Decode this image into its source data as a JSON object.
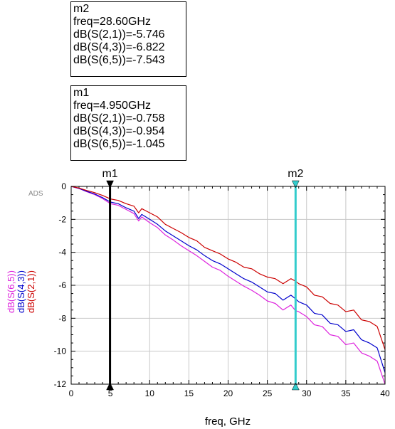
{
  "markers": [
    {
      "name": "m2",
      "freq_text": "freq=28.60GHz",
      "lines": [
        "dB(S(2,1))=-5.746",
        "dB(S(4,3))=-6.822",
        "dB(S(6,5))=-7.543"
      ]
    },
    {
      "name": "m1",
      "freq_text": "freq=4.950GHz",
      "lines": [
        "dB(S(2,1))=-0.758",
        "dB(S(4,3))=-0.954",
        "dB(S(6,5))=-1.045"
      ]
    }
  ],
  "chart_data": {
    "type": "line",
    "watermark": "ADS",
    "xlabel": "freq, GHz",
    "xlim": [
      0,
      40
    ],
    "ylim": [
      -12,
      0
    ],
    "xticks": [
      0,
      5,
      10,
      15,
      20,
      25,
      30,
      35,
      40
    ],
    "yticks": [
      0,
      -2,
      -4,
      -6,
      -8,
      -10,
      -12
    ],
    "grid": true,
    "legend": "left-vertical",
    "series": [
      {
        "name": "dB(S(2,1))",
        "color": "#cc0000",
        "x": [
          0,
          1,
          2,
          3,
          4,
          5,
          6,
          7,
          8,
          8.6,
          9,
          10,
          11,
          12,
          13,
          14,
          15,
          16,
          17,
          18,
          19,
          20,
          21,
          22,
          23,
          24,
          25,
          26,
          27,
          28,
          28.6,
          29,
          30,
          31,
          32,
          33,
          34,
          35,
          36,
          37,
          38,
          39,
          40
        ],
        "y": [
          0,
          -0.1,
          -0.25,
          -0.38,
          -0.55,
          -0.76,
          -0.85,
          -1.05,
          -1.2,
          -1.6,
          -1.35,
          -1.6,
          -1.85,
          -2.3,
          -2.55,
          -2.8,
          -3.1,
          -3.3,
          -3.7,
          -3.9,
          -4.1,
          -4.4,
          -4.6,
          -4.9,
          -5.0,
          -5.3,
          -5.5,
          -5.6,
          -5.9,
          -5.6,
          -5.75,
          -5.9,
          -6.1,
          -6.6,
          -6.7,
          -7.1,
          -7.2,
          -7.6,
          -7.5,
          -8.1,
          -8.2,
          -8.5,
          -9.9
        ]
      },
      {
        "name": "dB(S(4,3))",
        "color": "#0000cc",
        "x": [
          0,
          1,
          2,
          3,
          4,
          5,
          6,
          7,
          8,
          8.6,
          9,
          10,
          11,
          12,
          13,
          14,
          15,
          16,
          17,
          18,
          19,
          20,
          21,
          22,
          23,
          24,
          25,
          26,
          27,
          28,
          28.6,
          29,
          30,
          31,
          32,
          33,
          34,
          35,
          36,
          37,
          38,
          39,
          40
        ],
        "y": [
          0,
          -0.12,
          -0.3,
          -0.46,
          -0.68,
          -0.95,
          -1.05,
          -1.3,
          -1.5,
          -1.95,
          -1.7,
          -2.0,
          -2.3,
          -2.7,
          -3.0,
          -3.3,
          -3.6,
          -3.85,
          -4.2,
          -4.5,
          -4.7,
          -5.0,
          -5.3,
          -5.6,
          -5.8,
          -6.1,
          -6.4,
          -6.5,
          -6.9,
          -6.6,
          -6.82,
          -7.0,
          -7.2,
          -7.7,
          -7.8,
          -8.3,
          -8.4,
          -8.8,
          -8.7,
          -9.3,
          -9.5,
          -9.8,
          -11.3
        ]
      },
      {
        "name": "dB(S(6,5))",
        "color": "#dd22dd",
        "x": [
          0,
          1,
          2,
          3,
          4,
          5,
          6,
          7,
          8,
          8.6,
          9,
          10,
          11,
          12,
          13,
          14,
          15,
          16,
          17,
          18,
          19,
          20,
          21,
          22,
          23,
          24,
          25,
          26,
          27,
          28,
          28.6,
          29,
          30,
          31,
          32,
          33,
          34,
          35,
          36,
          37,
          38,
          39,
          40
        ],
        "y": [
          0,
          -0.13,
          -0.33,
          -0.5,
          -0.74,
          -1.05,
          -1.15,
          -1.4,
          -1.65,
          -2.1,
          -1.85,
          -2.2,
          -2.5,
          -2.95,
          -3.25,
          -3.6,
          -3.9,
          -4.2,
          -4.55,
          -4.9,
          -5.1,
          -5.45,
          -5.75,
          -6.05,
          -6.3,
          -6.6,
          -6.95,
          -7.1,
          -7.5,
          -7.2,
          -7.54,
          -7.6,
          -7.9,
          -8.4,
          -8.5,
          -9.0,
          -9.1,
          -9.6,
          -9.5,
          -10.1,
          -10.3,
          -10.6,
          -12.0
        ]
      }
    ],
    "marker_lines": [
      {
        "name": "m1",
        "x": 4.95,
        "color": "#000000"
      },
      {
        "name": "m2",
        "x": 28.6,
        "color": "#33cccc"
      }
    ]
  }
}
